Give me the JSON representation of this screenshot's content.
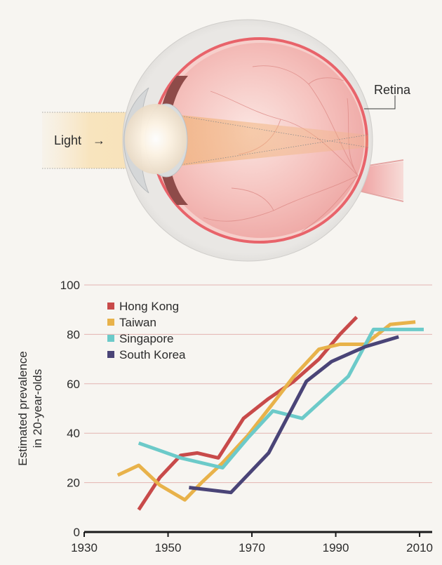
{
  "diagram": {
    "labels": {
      "light": "Light",
      "light_arrow": "→",
      "retina": "Retina"
    },
    "colors": {
      "background": "#f7f5f1",
      "sclera": "#e4e2df",
      "retina_line": "#e8636a",
      "eyeball": "#f2b8b6",
      "light_beam": "#f8e3bd"
    }
  },
  "chart_data": {
    "type": "line",
    "title": "",
    "xlabel": "",
    "ylabel": "Estimated prevalence in 20-year-olds",
    "ylabel_lines": [
      "Estimated prevalence",
      "in 20-year-olds"
    ],
    "xlim": [
      1930,
      2013
    ],
    "ylim": [
      0,
      100
    ],
    "x_ticks": [
      1930,
      1950,
      1970,
      1990,
      2010
    ],
    "y_ticks": [
      0,
      20,
      40,
      60,
      80,
      100
    ],
    "grid": true,
    "grid_color": "#e3b3b1",
    "legend_position": "top-left",
    "series": [
      {
        "name": "Hong Kong",
        "color": "#c84a4a",
        "points": [
          [
            1943,
            9
          ],
          [
            1948,
            22
          ],
          [
            1953,
            31
          ],
          [
            1957,
            32
          ],
          [
            1962,
            30
          ],
          [
            1968,
            46
          ],
          [
            1974,
            54
          ],
          [
            1980,
            61
          ],
          [
            1986,
            70
          ],
          [
            1991,
            80
          ],
          [
            1995,
            87
          ]
        ]
      },
      {
        "name": "Taiwan",
        "color": "#e8b24a",
        "points": [
          [
            1938,
            23
          ],
          [
            1943,
            27
          ],
          [
            1948,
            19
          ],
          [
            1954,
            13
          ],
          [
            1958,
            20
          ],
          [
            1963,
            28
          ],
          [
            1969,
            39
          ],
          [
            1975,
            52
          ],
          [
            1980,
            63
          ],
          [
            1986,
            74
          ],
          [
            1991,
            76
          ],
          [
            1997,
            76
          ],
          [
            2003,
            84
          ],
          [
            2009,
            85
          ]
        ]
      },
      {
        "name": "Singapore",
        "color": "#6ccac9",
        "points": [
          [
            1943,
            36
          ],
          [
            1948,
            33
          ],
          [
            1953,
            30
          ],
          [
            1963,
            26
          ],
          [
            1969,
            38
          ],
          [
            1975,
            49
          ],
          [
            1982,
            46
          ],
          [
            1993,
            63
          ],
          [
            1999,
            82
          ],
          [
            2011,
            82
          ]
        ]
      },
      {
        "name": "South Korea",
        "color": "#4a4477",
        "points": [
          [
            1955,
            18
          ],
          [
            1965,
            16
          ],
          [
            1974,
            32
          ],
          [
            1983,
            61
          ],
          [
            1989,
            69
          ],
          [
            1997,
            75
          ],
          [
            2005,
            79
          ]
        ]
      }
    ]
  }
}
